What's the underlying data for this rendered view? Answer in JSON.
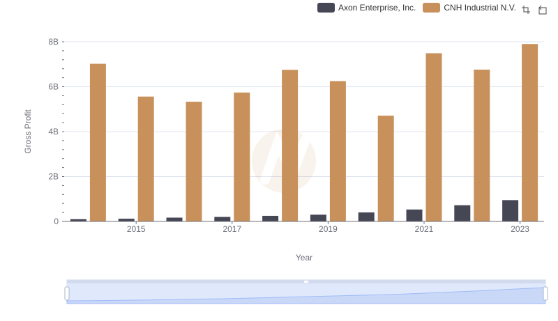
{
  "legend": {
    "items": [
      {
        "label": "Axon Enterprise, Inc.",
        "color": "#464755"
      },
      {
        "label": "CNH Industrial N.V.",
        "color": "#c8915c"
      }
    ]
  },
  "toolbox": {
    "icons": [
      "zoom-icon",
      "zoom-reset-icon"
    ]
  },
  "chart_data": {
    "type": "bar",
    "xlabel": "Year",
    "ylabel": "Gross Profit",
    "categories": [
      "2014",
      "2015",
      "2016",
      "2017",
      "2018",
      "2019",
      "2020",
      "2021",
      "2022",
      "2023"
    ],
    "x_tick_labels": [
      "2015",
      "2017",
      "2019",
      "2021",
      "2023"
    ],
    "y_tick_labels": [
      "0",
      "2B",
      "4B",
      "6B",
      "8B"
    ],
    "ylim": [
      0,
      8000000000
    ],
    "grid": true,
    "legend_position": "top-right",
    "series": [
      {
        "name": "Axon Enterprise, Inc.",
        "color": "#464755",
        "values": [
          100000000,
          120000000,
          170000000,
          200000000,
          250000000,
          300000000,
          400000000,
          530000000,
          720000000,
          950000000
        ]
      },
      {
        "name": "CNH Industrial N.V.",
        "color": "#c8915c",
        "values": [
          7020000000,
          5560000000,
          5330000000,
          5740000000,
          6750000000,
          6250000000,
          4710000000,
          7490000000,
          6760000000,
          7900000000
        ]
      }
    ]
  }
}
